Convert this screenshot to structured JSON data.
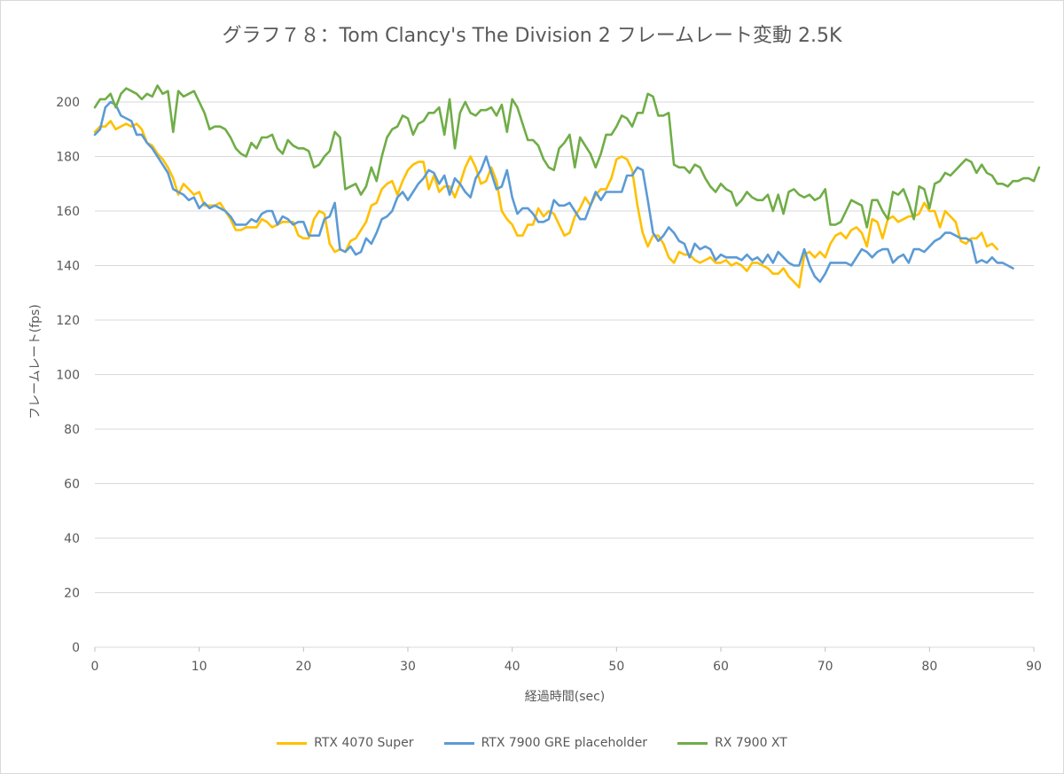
{
  "chart_data": {
    "type": "line",
    "title": "グラフ７８：Tom Clancy's The Division 2 フレームレート変動 2.5K",
    "xlabel": "経過時間(sec)",
    "ylabel": "フレームレート(fps)",
    "xlim": [
      0,
      90
    ],
    "ylim": [
      0,
      200
    ],
    "x_ticks": [
      "0",
      "10",
      "20",
      "30",
      "40",
      "50",
      "60",
      "70",
      "80",
      "90"
    ],
    "y_ticks": [
      "0",
      "20",
      "40",
      "60",
      "80",
      "100",
      "120",
      "140",
      "160",
      "180",
      "200"
    ],
    "grid": "horizontal",
    "legend_position": "bottom",
    "x_step": 0.5,
    "series": [
      {
        "name": "RTX 4070 Super",
        "color": "#FFC000",
        "values": [
          189,
          191,
          191,
          193,
          190,
          191,
          192,
          191,
          192,
          190,
          185,
          184,
          181,
          179,
          176,
          172,
          166,
          170,
          168,
          166,
          167,
          162,
          162,
          162,
          163,
          160,
          157,
          153,
          153,
          154,
          154,
          154,
          157,
          156,
          154,
          155,
          156,
          156,
          156,
          151,
          150,
          150,
          157,
          160,
          159,
          148,
          145,
          146,
          145,
          149,
          150,
          153,
          156,
          162,
          163,
          168,
          170,
          171,
          166,
          171,
          175,
          177,
          178,
          178,
          168,
          173,
          167,
          169,
          169,
          165,
          170,
          176,
          180,
          176,
          170,
          171,
          176,
          171,
          160,
          157,
          155,
          151,
          151,
          155,
          155,
          161,
          158,
          160,
          159,
          155,
          151,
          152,
          158,
          161,
          165,
          162,
          166,
          168,
          168,
          172,
          179,
          180,
          179,
          175,
          162,
          152,
          147,
          151,
          151,
          148,
          143,
          141,
          145,
          144,
          144,
          142,
          141,
          142,
          143,
          141,
          141,
          142,
          140,
          141,
          140,
          138,
          141,
          141,
          140,
          139,
          137,
          137,
          139,
          136,
          134,
          132,
          144,
          145,
          143,
          145,
          143,
          148,
          151,
          152,
          150,
          153,
          154,
          152,
          147,
          157,
          156,
          150,
          157,
          158,
          156,
          157,
          158,
          158,
          159,
          163,
          160,
          160,
          154,
          160,
          158,
          156,
          149,
          148,
          150,
          150,
          152,
          147,
          148,
          146
        ]
      },
      {
        "name": "RTX 7900 GRE placeholder",
        "color": "#5B9BD5",
        "values": [
          188,
          190,
          198,
          200,
          199,
          195,
          194,
          193,
          188,
          188,
          185,
          183,
          180,
          177,
          174,
          168,
          167,
          166,
          164,
          165,
          161,
          163,
          161,
          162,
          161,
          160,
          158,
          155,
          155,
          155,
          157,
          156,
          159,
          160,
          160,
          155,
          158,
          157,
          155,
          156,
          156,
          151,
          151,
          151,
          157,
          158,
          163,
          146,
          145,
          147,
          144,
          145,
          150,
          148,
          152,
          157,
          158,
          160,
          165,
          167,
          164,
          167,
          170,
          172,
          175,
          174,
          170,
          173,
          166,
          172,
          170,
          167,
          165,
          172,
          175,
          180,
          174,
          168,
          169,
          175,
          165,
          159,
          161,
          161,
          159,
          156,
          156,
          157,
          164,
          162,
          162,
          163,
          160,
          157,
          157,
          162,
          167,
          164,
          167,
          167,
          167,
          167,
          173,
          173,
          176,
          175,
          164,
          152,
          149,
          151,
          154,
          152,
          149,
          148,
          143,
          148,
          146,
          147,
          146,
          142,
          144,
          143,
          143,
          143,
          142,
          144,
          142,
          143,
          141,
          144,
          141,
          145,
          143,
          141,
          140,
          140,
          146,
          140,
          136,
          134,
          137,
          141,
          141,
          141,
          141,
          140,
          143,
          146,
          145,
          143,
          145,
          146,
          146,
          141,
          143,
          144,
          141,
          146,
          146,
          145,
          147,
          149,
          150,
          152,
          152,
          151,
          150,
          150,
          149,
          141,
          142,
          141,
          143,
          141,
          141,
          140,
          139
        ]
      },
      {
        "name": "RX 7900 XT",
        "color": "#70AD47",
        "values": [
          198,
          201,
          201,
          203,
          198,
          203,
          205,
          204,
          203,
          201,
          203,
          202,
          206,
          203,
          204,
          189,
          204,
          202,
          203,
          204,
          200,
          196,
          190,
          191,
          191,
          190,
          187,
          183,
          181,
          180,
          185,
          183,
          187,
          187,
          188,
          183,
          181,
          186,
          184,
          183,
          183,
          182,
          176,
          177,
          180,
          182,
          189,
          187,
          168,
          169,
          170,
          166,
          169,
          176,
          171,
          180,
          187,
          190,
          191,
          195,
          194,
          188,
          192,
          193,
          196,
          196,
          198,
          188,
          201,
          183,
          196,
          200,
          196,
          195,
          197,
          197,
          198,
          195,
          199,
          189,
          201,
          198,
          192,
          186,
          186,
          184,
          179,
          176,
          175,
          183,
          185,
          188,
          176,
          187,
          184,
          181,
          176,
          181,
          188,
          188,
          191,
          195,
          194,
          191,
          196,
          196,
          203,
          202,
          195,
          195,
          196,
          177,
          176,
          176,
          174,
          177,
          176,
          172,
          169,
          167,
          170,
          168,
          167,
          162,
          164,
          167,
          165,
          164,
          164,
          166,
          160,
          166,
          159,
          167,
          168,
          166,
          165,
          166,
          164,
          165,
          168,
          155,
          155,
          156,
          160,
          164,
          163,
          162,
          154,
          164,
          164,
          160,
          157,
          167,
          166,
          168,
          163,
          157,
          169,
          168,
          161,
          170,
          171,
          174,
          173,
          175,
          177,
          179,
          178,
          174,
          177,
          174,
          173,
          170,
          170,
          169,
          171,
          171,
          172,
          172,
          171,
          176
        ]
      }
    ]
  }
}
